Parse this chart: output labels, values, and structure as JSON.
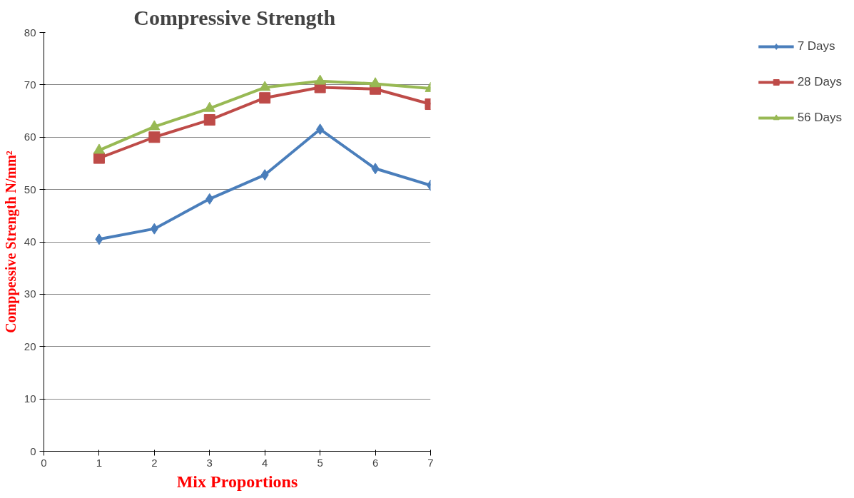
{
  "chart_data": {
    "type": "line",
    "title": "Compressive  Strength",
    "xlabel": "Mix Proportions",
    "ylabel": "Comppessive Strength N/mm²",
    "x": [
      1,
      2,
      3,
      4,
      5,
      6,
      7
    ],
    "series": [
      {
        "name": "7 Days",
        "color": "#4a7ebb",
        "marker": "diamond",
        "values": [
          40.5,
          42.5,
          48.2,
          52.8,
          61.5,
          54,
          50.8
        ]
      },
      {
        "name": "28 Days",
        "color": "#be4b48",
        "marker": "square",
        "values": [
          56,
          60,
          63.3,
          67.5,
          69.5,
          69.2,
          66.3
        ]
      },
      {
        "name": "56 Days",
        "color": "#98b954",
        "marker": "triangle",
        "values": [
          57.5,
          62,
          65.5,
          69.5,
          70.7,
          70.2,
          69.3
        ]
      }
    ],
    "xlim": [
      0,
      7
    ],
    "xticks": [
      0,
      1,
      2,
      3,
      4,
      5,
      6,
      7
    ],
    "ylim": [
      0,
      80
    ],
    "yticks": [
      0,
      10,
      20,
      30,
      40,
      50,
      60,
      70,
      80
    ],
    "grid": "y",
    "legend": "right",
    "line_style": "solid"
  }
}
